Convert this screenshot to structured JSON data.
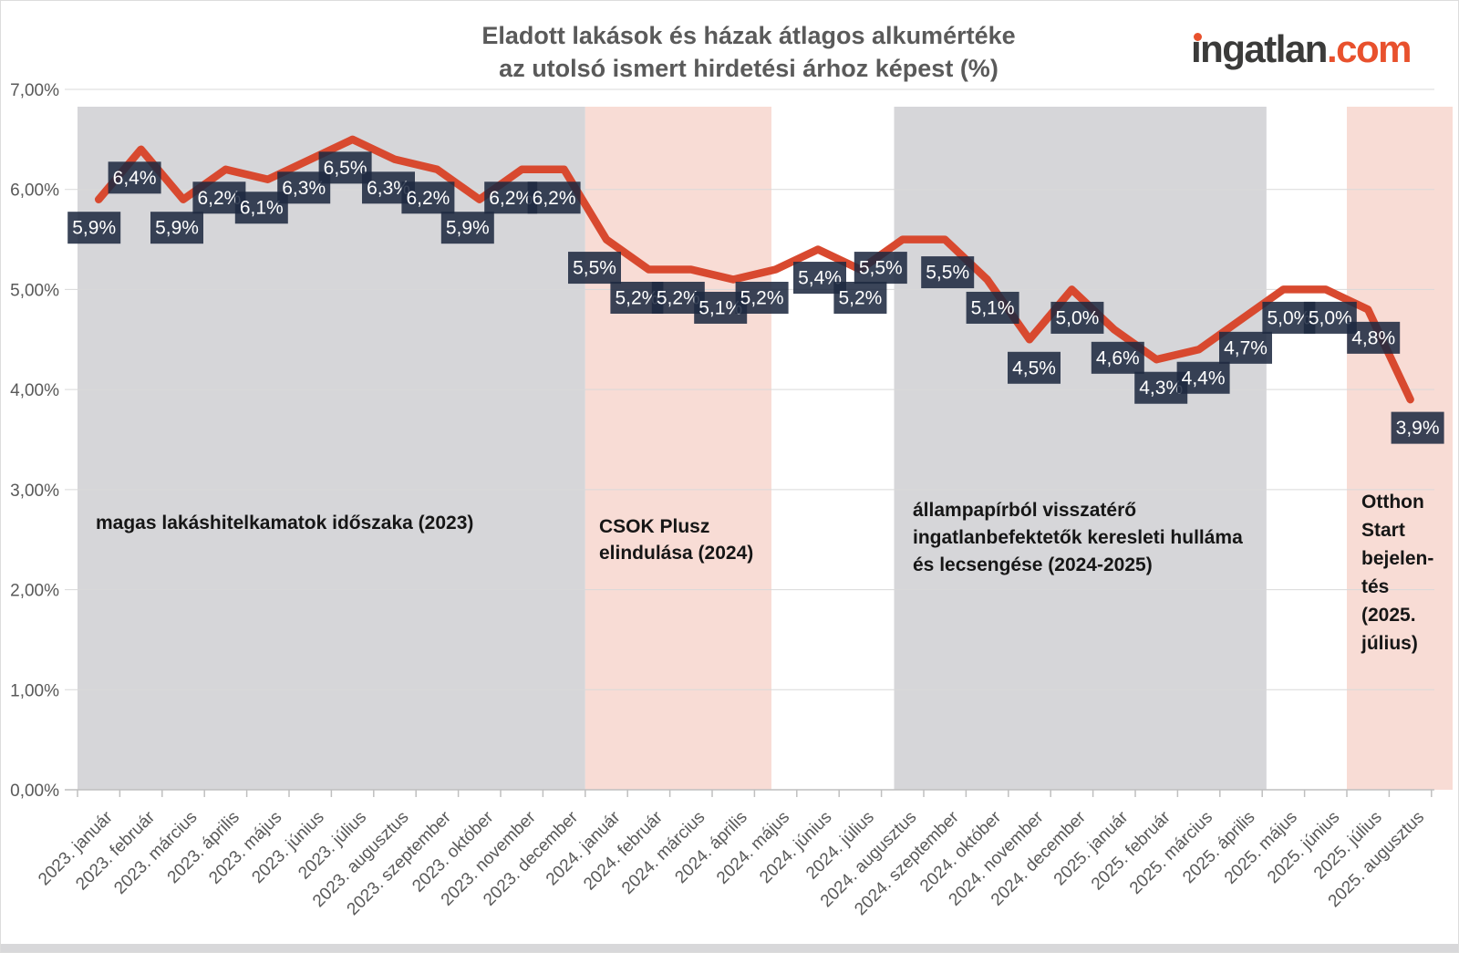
{
  "header": {
    "title_line1": "Eladott lakások és házak átlagos alkumértéke",
    "title_line2": "az utolsó ismert hirdetési árhoz képest (%)",
    "logo": {
      "name": "ingatlan.com",
      "dark_text": "ingatlan",
      "accent_text": ".com",
      "dark_color": "#3b3b3a",
      "accent_color": "#e8512d"
    }
  },
  "chart_data": {
    "type": "line",
    "title": "Eladott lakások és házak átlagos alkumértéke az utolsó ismert hirdetési árhoz képest (%)",
    "categories": [
      "2023. január",
      "2023. február",
      "2023. március",
      "2023. április",
      "2023. május",
      "2023. június",
      "2023. július",
      "2023. augusztus",
      "2023. szeptember",
      "2023. október",
      "2023. november",
      "2023. december",
      "2024. január",
      "2024. február",
      "2024. március",
      "2024. április",
      "2024. május",
      "2024. június",
      "2024. július",
      "2024. augusztus",
      "2024. szeptember",
      "2024. október",
      "2024. november",
      "2024. december",
      "2025. január",
      "2025. február",
      "2025. március",
      "2025. április",
      "2025. május",
      "2025. június",
      "2025. július",
      "2025. augusztus"
    ],
    "values": [
      5.9,
      6.4,
      5.9,
      6.2,
      6.1,
      6.3,
      6.5,
      6.3,
      6.2,
      5.9,
      6.2,
      6.2,
      5.5,
      5.2,
      5.2,
      5.1,
      5.2,
      5.4,
      5.2,
      5.5,
      5.5,
      5.1,
      4.5,
      5.0,
      4.6,
      4.3,
      4.4,
      4.7,
      5.0,
      5.0,
      4.8,
      3.9
    ],
    "point_labels": [
      "5,9%",
      "6,4%",
      "5,9%",
      "6,2%",
      "6,1%",
      "6,3%",
      "6,5%",
      "6,3%",
      "6,2%",
      "5,9%",
      "6,2%",
      "6,2%",
      "5,5%",
      "5,2%",
      "5,2%",
      "5,1%",
      "5,2%",
      "5,4%",
      "5,2%",
      "5,5%",
      "5,5%",
      "5,1%",
      "4,5%",
      "5,0%",
      "4,6%",
      "4,3%",
      "4,4%",
      "4,7%",
      "5,0%",
      "5,0%",
      "4,8%",
      "3,9%"
    ],
    "ylim": [
      0,
      7
    ],
    "ytick_labels": [
      "0,00%",
      "1,00%",
      "2,00%",
      "3,00%",
      "4,00%",
      "5,00%",
      "6,00%",
      "7,00%"
    ],
    "grid": true,
    "legend": "none",
    "line_color": "#d8492f",
    "point_label_bg": "rgba(30,41,64,0.87)",
    "point_label_text_color": "#ffffff",
    "axis_text_color": "#595959",
    "grid_color": "#d9d9d9",
    "bands": [
      {
        "color": "#d6d6d9",
        "from_index": 0,
        "to_index": 12,
        "label_lines": [
          "magas lakáshitelkamatok időszaka (2023)"
        ]
      },
      {
        "color": "#f8dcd5",
        "from_index": 12,
        "to_index": 16.4,
        "label_lines": [
          "CSOK Plusz",
          "elindulása (2024)"
        ]
      },
      {
        "color": "#d6d6d9",
        "from_index": 19.3,
        "to_index": 28.1,
        "label_lines": [
          "állampapírból visszatérő",
          "ingatlanbefektetők keresleti hulláma",
          "és lecsengése (2024-2025)"
        ]
      },
      {
        "color": "#f8dcd5",
        "from_index": 30,
        "to_index": 32.5,
        "label_lines": [
          "Otthon",
          "Start",
          "bejelen-",
          "tés",
          "(2025.",
          "július)"
        ]
      }
    ]
  }
}
